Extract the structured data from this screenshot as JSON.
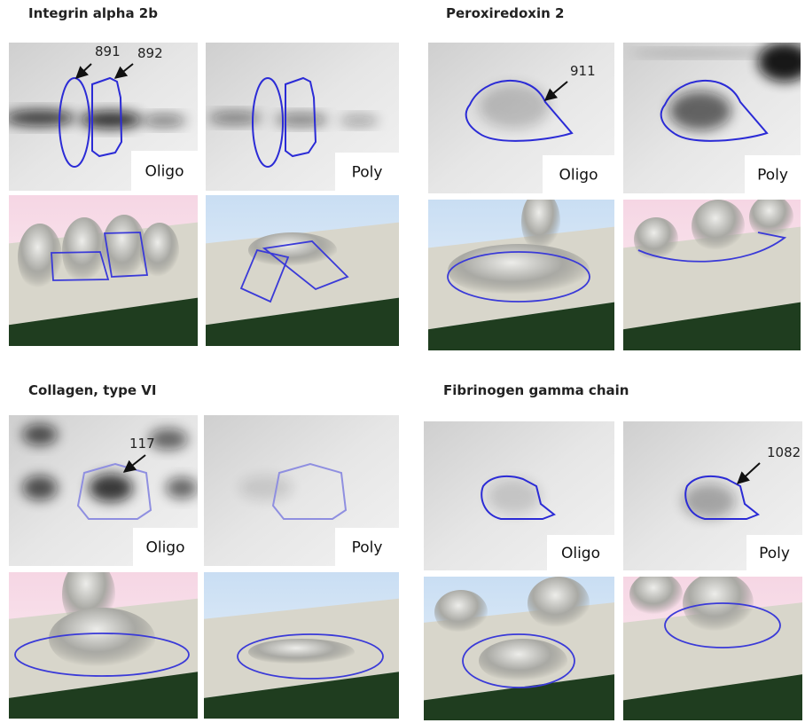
{
  "panels": [
    {
      "title": "Integrin alpha 2b",
      "spots": [
        "891",
        "892"
      ],
      "conditions": [
        "Oligo",
        "Poly"
      ]
    },
    {
      "title": "Peroxiredoxin 2",
      "spots": [
        "911"
      ],
      "conditions": [
        "Oligo",
        "Poly"
      ]
    },
    {
      "title": "Collagen, type VI",
      "spots": [
        "117"
      ],
      "conditions": [
        "Oligo",
        "Poly"
      ]
    },
    {
      "title": "Fibrinogen gamma chain",
      "spots": [
        "1082"
      ],
      "conditions": [
        "Oligo",
        "Poly"
      ]
    }
  ]
}
